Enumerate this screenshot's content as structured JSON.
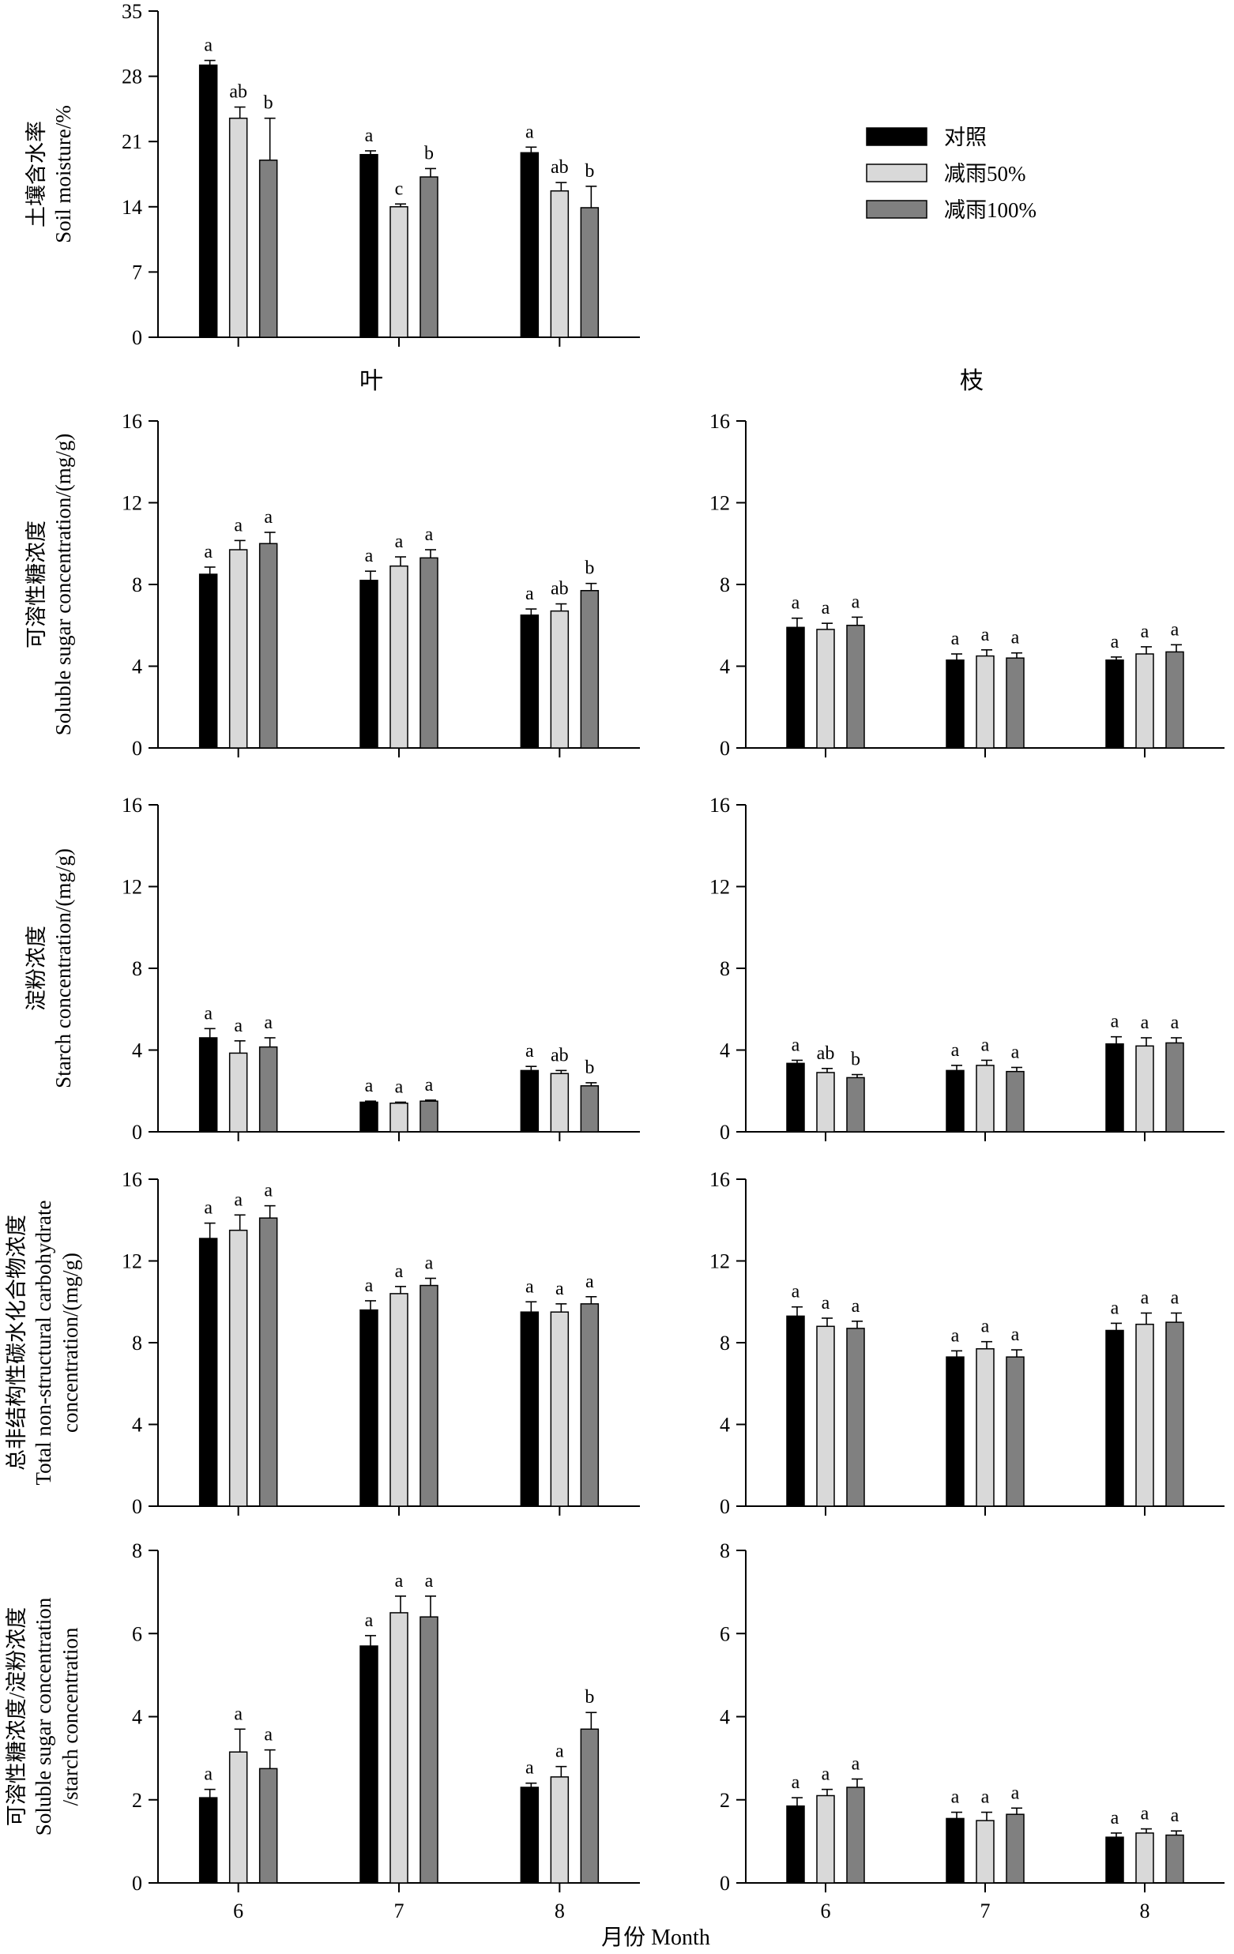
{
  "figure": {
    "xlabel": "月份 Month",
    "leaf_header": "叶",
    "branch_header": "枝"
  },
  "legend": [
    {
      "name": "对照",
      "color": "#000000"
    },
    {
      "name": "减雨50%",
      "color": "#d9d9d9"
    },
    {
      "name": "减雨100%",
      "color": "#808080"
    }
  ],
  "chart_data": [
    {
      "id": "soil",
      "type": "bar",
      "title": "",
      "ylabel_lines": [
        "土壤含水率",
        "Soil moisture/%"
      ],
      "ylim": [
        0,
        35
      ],
      "yticks": [
        0,
        7,
        14,
        21,
        28,
        35
      ],
      "categories": [
        "6",
        "7",
        "8"
      ],
      "show_xtick_labels": false,
      "series": [
        {
          "name": "对照",
          "values": [
            29.2,
            19.6,
            19.8
          ],
          "errors": [
            0.5,
            0.4,
            0.6
          ],
          "labels": [
            "a",
            "a",
            "a"
          ]
        },
        {
          "name": "减雨50%",
          "values": [
            23.5,
            14.0,
            15.7
          ],
          "errors": [
            1.2,
            0.3,
            0.9
          ],
          "labels": [
            "ab",
            "c",
            "ab"
          ]
        },
        {
          "name": "减雨100%",
          "values": [
            19.0,
            17.2,
            13.9
          ],
          "errors": [
            4.5,
            0.9,
            2.3
          ],
          "labels": [
            "b",
            "b",
            "b"
          ]
        }
      ]
    },
    {
      "id": "leaf-sugar",
      "type": "bar",
      "title": "",
      "ylabel_lines": [
        "可溶性糖浓度",
        "Soluble sugar concentration/(mg/g)"
      ],
      "ylim": [
        0,
        16
      ],
      "yticks": [
        0,
        4,
        8,
        12,
        16
      ],
      "categories": [
        "6",
        "7",
        "8"
      ],
      "show_xtick_labels": false,
      "series": [
        {
          "name": "对照",
          "values": [
            8.5,
            8.2,
            6.5
          ],
          "errors": [
            0.35,
            0.45,
            0.3
          ],
          "labels": [
            "a",
            "a",
            "a"
          ]
        },
        {
          "name": "减雨50%",
          "values": [
            9.7,
            8.9,
            6.7
          ],
          "errors": [
            0.45,
            0.45,
            0.35
          ],
          "labels": [
            "a",
            "a",
            "ab"
          ]
        },
        {
          "name": "减雨100%",
          "values": [
            10.0,
            9.3,
            7.7
          ],
          "errors": [
            0.55,
            0.4,
            0.35
          ],
          "labels": [
            "a",
            "a",
            "b"
          ]
        }
      ]
    },
    {
      "id": "branch-sugar",
      "type": "bar",
      "title": "",
      "ylabel_lines": [],
      "ylim": [
        0,
        16
      ],
      "yticks": [
        0,
        4,
        8,
        12,
        16
      ],
      "categories": [
        "6",
        "7",
        "8"
      ],
      "show_xtick_labels": false,
      "series": [
        {
          "name": "对照",
          "values": [
            5.9,
            4.3,
            4.3
          ],
          "errors": [
            0.45,
            0.3,
            0.15
          ],
          "labels": [
            "a",
            "a",
            "a"
          ]
        },
        {
          "name": "减雨50%",
          "values": [
            5.8,
            4.5,
            4.6
          ],
          "errors": [
            0.3,
            0.3,
            0.35
          ],
          "labels": [
            "a",
            "a",
            "a"
          ]
        },
        {
          "name": "减雨100%",
          "values": [
            6.0,
            4.4,
            4.7
          ],
          "errors": [
            0.4,
            0.25,
            0.35
          ],
          "labels": [
            "a",
            "a",
            "a"
          ]
        }
      ]
    },
    {
      "id": "leaf-starch",
      "type": "bar",
      "title": "",
      "ylabel_lines": [
        "淀粉浓度",
        "Starch concentration/(mg/g)"
      ],
      "ylim": [
        0,
        16
      ],
      "yticks": [
        0,
        4,
        8,
        12,
        16
      ],
      "categories": [
        "6",
        "7",
        "8"
      ],
      "show_xtick_labels": false,
      "series": [
        {
          "name": "对照",
          "values": [
            4.6,
            1.45,
            3.0
          ],
          "errors": [
            0.45,
            0.05,
            0.2
          ],
          "labels": [
            "a",
            "a",
            "a"
          ]
        },
        {
          "name": "减雨50%",
          "values": [
            3.85,
            1.4,
            2.85
          ],
          "errors": [
            0.6,
            0.05,
            0.15
          ],
          "labels": [
            "a",
            "a",
            "ab"
          ]
        },
        {
          "name": "减雨100%",
          "values": [
            4.15,
            1.5,
            2.25
          ],
          "errors": [
            0.45,
            0.05,
            0.15
          ],
          "labels": [
            "a",
            "a",
            "b"
          ]
        }
      ]
    },
    {
      "id": "branch-starch",
      "type": "bar",
      "title": "",
      "ylabel_lines": [],
      "ylim": [
        0,
        16
      ],
      "yticks": [
        0,
        4,
        8,
        12,
        16
      ],
      "categories": [
        "6",
        "7",
        "8"
      ],
      "show_xtick_labels": false,
      "series": [
        {
          "name": "对照",
          "values": [
            3.35,
            3.0,
            4.3
          ],
          "errors": [
            0.15,
            0.25,
            0.35
          ],
          "labels": [
            "a",
            "a",
            "a"
          ]
        },
        {
          "name": "减雨50%",
          "values": [
            2.9,
            3.25,
            4.2
          ],
          "errors": [
            0.2,
            0.25,
            0.4
          ],
          "labels": [
            "ab",
            "a",
            "a"
          ]
        },
        {
          "name": "减雨100%",
          "values": [
            2.65,
            2.95,
            4.35
          ],
          "errors": [
            0.15,
            0.2,
            0.25
          ],
          "labels": [
            "b",
            "a",
            "a"
          ]
        }
      ]
    },
    {
      "id": "leaf-nsc",
      "type": "bar",
      "title": "",
      "ylabel_lines": [
        "总非结构性碳水化合物浓度",
        "Total non-structural carbohydrate",
        "concentration/(mg/g)"
      ],
      "ylim": [
        0,
        16
      ],
      "yticks": [
        0,
        4,
        8,
        12,
        16
      ],
      "categories": [
        "6",
        "7",
        "8"
      ],
      "show_xtick_labels": false,
      "series": [
        {
          "name": "对照",
          "values": [
            13.1,
            9.6,
            9.5
          ],
          "errors": [
            0.75,
            0.45,
            0.5
          ],
          "labels": [
            "a",
            "a",
            "a"
          ]
        },
        {
          "name": "减雨50%",
          "values": [
            13.5,
            10.4,
            9.5
          ],
          "errors": [
            0.75,
            0.35,
            0.4
          ],
          "labels": [
            "a",
            "a",
            "a"
          ]
        },
        {
          "name": "减雨100%",
          "values": [
            14.1,
            10.8,
            9.9
          ],
          "errors": [
            0.6,
            0.35,
            0.35
          ],
          "labels": [
            "a",
            "a",
            "a"
          ]
        }
      ]
    },
    {
      "id": "branch-nsc",
      "type": "bar",
      "title": "",
      "ylabel_lines": [],
      "ylim": [
        0,
        16
      ],
      "yticks": [
        0,
        4,
        8,
        12,
        16
      ],
      "categories": [
        "6",
        "7",
        "8"
      ],
      "show_xtick_labels": false,
      "series": [
        {
          "name": "对照",
          "values": [
            9.3,
            7.3,
            8.6
          ],
          "errors": [
            0.45,
            0.3,
            0.35
          ],
          "labels": [
            "a",
            "a",
            "a"
          ]
        },
        {
          "name": "减雨50%",
          "values": [
            8.8,
            7.7,
            8.9
          ],
          "errors": [
            0.4,
            0.35,
            0.55
          ],
          "labels": [
            "a",
            "a",
            "a"
          ]
        },
        {
          "name": "减雨100%",
          "values": [
            8.7,
            7.3,
            9.0
          ],
          "errors": [
            0.35,
            0.35,
            0.45
          ],
          "labels": [
            "a",
            "a",
            "a"
          ]
        }
      ]
    },
    {
      "id": "leaf-ratio",
      "type": "bar",
      "title": "",
      "ylabel_lines": [
        "可溶性糖浓度/淀粉浓度",
        "Soluble sugar concentration",
        "/starch concentration"
      ],
      "ylim": [
        0,
        8
      ],
      "yticks": [
        0,
        2,
        4,
        6,
        8
      ],
      "categories": [
        "6",
        "7",
        "8"
      ],
      "show_xtick_labels": true,
      "series": [
        {
          "name": "对照",
          "values": [
            2.05,
            5.7,
            2.3
          ],
          "errors": [
            0.2,
            0.25,
            0.1
          ],
          "labels": [
            "a",
            "a",
            "a"
          ]
        },
        {
          "name": "减雨50%",
          "values": [
            3.15,
            6.5,
            2.55
          ],
          "errors": [
            0.55,
            0.4,
            0.25
          ],
          "labels": [
            "a",
            "a",
            "a"
          ]
        },
        {
          "name": "减雨100%",
          "values": [
            2.75,
            6.4,
            3.7
          ],
          "errors": [
            0.45,
            0.5,
            0.4
          ],
          "labels": [
            "a",
            "a",
            "b"
          ]
        }
      ]
    },
    {
      "id": "branch-ratio",
      "type": "bar",
      "title": "",
      "ylabel_lines": [],
      "ylim": [
        0,
        8
      ],
      "yticks": [
        0,
        2,
        4,
        6,
        8
      ],
      "categories": [
        "6",
        "7",
        "8"
      ],
      "show_xtick_labels": true,
      "series": [
        {
          "name": "对照",
          "values": [
            1.85,
            1.55,
            1.1
          ],
          "errors": [
            0.2,
            0.15,
            0.1
          ],
          "labels": [
            "a",
            "a",
            "a"
          ]
        },
        {
          "name": "减雨50%",
          "values": [
            2.1,
            1.5,
            1.2
          ],
          "errors": [
            0.15,
            0.2,
            0.1
          ],
          "labels": [
            "a",
            "a",
            "a"
          ]
        },
        {
          "name": "减雨100%",
          "values": [
            2.3,
            1.65,
            1.15
          ],
          "errors": [
            0.2,
            0.15,
            0.1
          ],
          "labels": [
            "a",
            "a",
            "a"
          ]
        }
      ]
    }
  ]
}
